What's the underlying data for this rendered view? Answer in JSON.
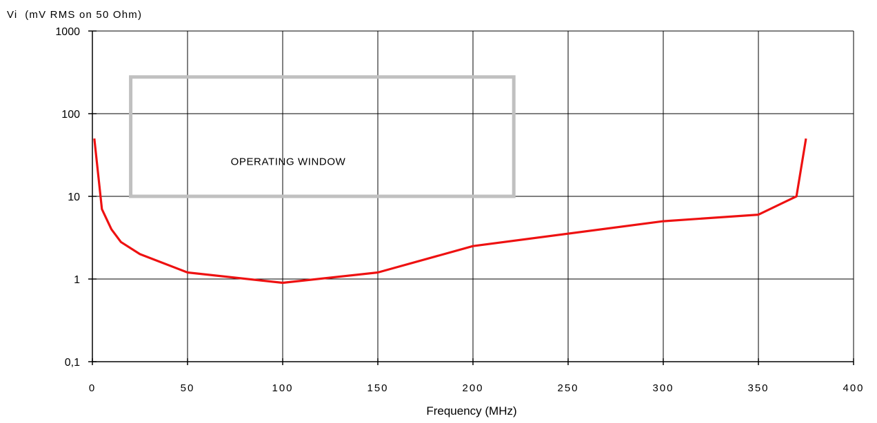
{
  "chart_data": {
    "type": "line",
    "ylabel": "Vi  (mV RMS on 50 Ohm)",
    "xlabel": "Frequency (MHz)",
    "xlim": [
      0,
      400
    ],
    "ylim": [
      0.1,
      1000
    ],
    "yscale": "log",
    "grid": true,
    "x_ticks": [
      0,
      50,
      100,
      150,
      200,
      250,
      300,
      350,
      400
    ],
    "x_tick_labels": [
      "0",
      "50",
      "100",
      "150",
      "200",
      "250",
      "300",
      "350",
      "400"
    ],
    "y_ticks": [
      0.1,
      1,
      10,
      100,
      1000
    ],
    "y_tick_labels": [
      "0,1",
      "1",
      "10",
      "100",
      "1000"
    ],
    "series": [
      {
        "color": "#ee1111",
        "x": [
          1,
          5,
          10,
          15,
          25,
          50,
          100,
          150,
          200,
          300,
          350,
          370,
          375
        ],
        "y": [
          50,
          7,
          4,
          2.8,
          2,
          1.2,
          0.9,
          1.2,
          2.5,
          5,
          6,
          10,
          50
        ]
      }
    ],
    "annotation": {
      "text": "OPERATING WINDOW",
      "x_range": [
        10,
        220
      ],
      "y_range": [
        10,
        300
      ],
      "color": "#c0c0c0"
    }
  }
}
